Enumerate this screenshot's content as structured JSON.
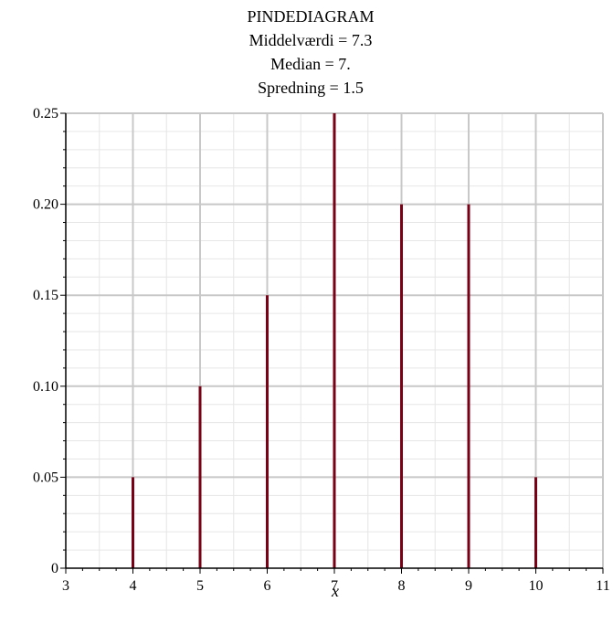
{
  "chart_data": {
    "type": "bar",
    "style": "stem",
    "title_lines": [
      "PINDEDIAGRAM",
      "Middelværdi = 7.3",
      "Median = 7.",
      "Spredning = 1.5"
    ],
    "xlabel": "x",
    "ylabel": "",
    "xlim": [
      3,
      11
    ],
    "ylim": [
      0,
      0.25
    ],
    "x_ticks": [
      "3",
      "4",
      "5",
      "6",
      "7",
      "8",
      "9",
      "10",
      "11"
    ],
    "y_ticks": [
      "0",
      "0.05",
      "0.10",
      "0.15",
      "0.20",
      "0.25"
    ],
    "x": [
      4,
      5,
      6,
      7,
      8,
      9,
      10
    ],
    "values": [
      0.05,
      0.1,
      0.15,
      0.25,
      0.2,
      0.2,
      0.05
    ],
    "grid": true,
    "colors": {
      "stem": "#7a0016",
      "grid_major": "#c8c8c8",
      "grid_minor": "#e6e6e6",
      "axis": "#000000"
    }
  }
}
